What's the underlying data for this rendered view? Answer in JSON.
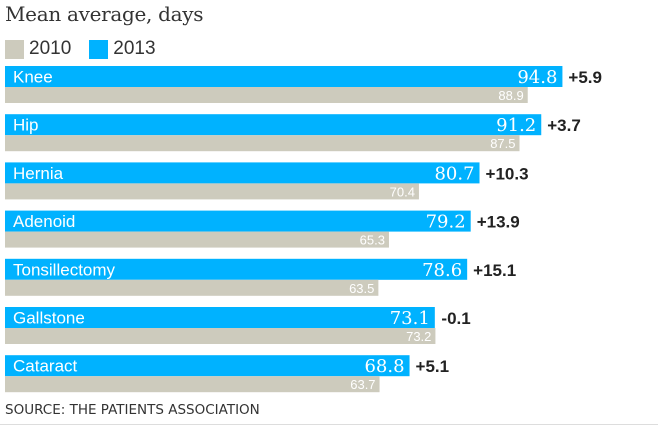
{
  "chart_data": {
    "type": "bar",
    "title": "Mean average, days",
    "categories": [
      "Knee",
      "Hip",
      "Hernia",
      "Adenoid",
      "Tonsillectomy",
      "Gallstone",
      "Cataract"
    ],
    "series": [
      {
        "name": "2013",
        "values": [
          94.8,
          91.2,
          80.7,
          79.2,
          78.6,
          73.1,
          68.8
        ]
      },
      {
        "name": "2010",
        "values": [
          88.9,
          87.5,
          70.4,
          65.3,
          63.5,
          73.2,
          63.7
        ]
      }
    ],
    "changes": [
      "+5.9",
      "+3.7",
      "+10.3",
      "+13.9",
      "+15.1",
      "-0.1",
      "+5.1"
    ],
    "xlim": [
      0,
      100
    ],
    "orientation": "horizontal",
    "legend_position": "top-left",
    "colors": {
      "2013": "#00b2ff",
      "2010": "#cdcbbd"
    }
  },
  "source": "SOURCE: THE PATIENTS ASSOCIATION"
}
